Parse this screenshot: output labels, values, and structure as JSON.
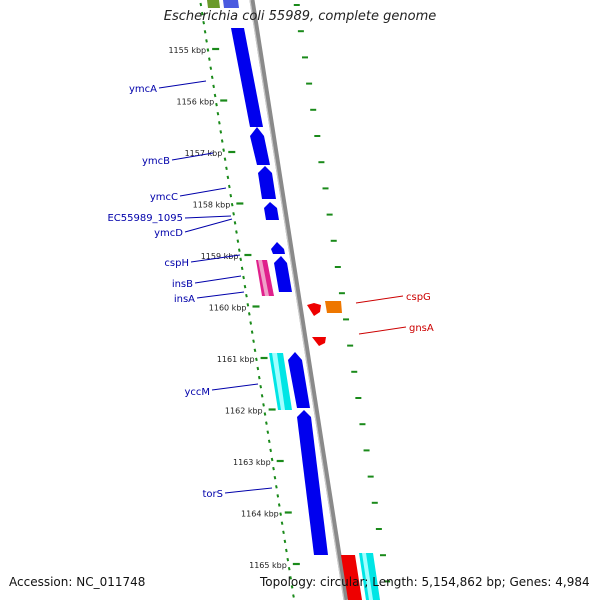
{
  "title": "Escherichia coli 55989, complete genome",
  "footer": {
    "accession": "Accession: NC_011748",
    "topology": "Topology: circular; Length: 5,154,862 bp; Genes: 4,984"
  },
  "kbp_labels": [
    "1155 kbp",
    "1156 kbp",
    "1157 kbp",
    "1158 kbp",
    "1159 kbp",
    "1160 kbp",
    "1161 kbp",
    "1162 kbp",
    "1163 kbp",
    "1164 kbp",
    "1165 kbp"
  ],
  "genes_left": [
    {
      "name": "ymcA",
      "color": "#0000ee"
    },
    {
      "name": "ymcB",
      "color": "#0000ee"
    },
    {
      "name": "ymcC",
      "color": "#0000ee"
    },
    {
      "name": "EC55989_1095",
      "color": "#0000ee"
    },
    {
      "name": "ymcD",
      "color": "#0000ee"
    },
    {
      "name": "cspH",
      "color": "#0000ee"
    },
    {
      "name": "insB",
      "color": "#e0208c"
    },
    {
      "name": "insA",
      "color": "#e0208c"
    },
    {
      "name": "yccM",
      "color": "#00e5e5"
    },
    {
      "name": "torS",
      "color": "#0000ee"
    }
  ],
  "genes_right": [
    {
      "name": "cspG",
      "color": "#ee7700"
    },
    {
      "name": "gnsA",
      "color": "#ee0000"
    }
  ],
  "colors": {
    "forward_gene": "#0000ee",
    "insertion_element": "#e0208c",
    "cyan_gene": "#00e5e5",
    "reverse_gene": "#ee0000",
    "orange_gene": "#ee7700",
    "green_gene": "#6a9a2a",
    "backbone": "#888888",
    "tick": "#1a8a1a",
    "label_left": "#0000aa",
    "label_right": "#cc0000"
  }
}
